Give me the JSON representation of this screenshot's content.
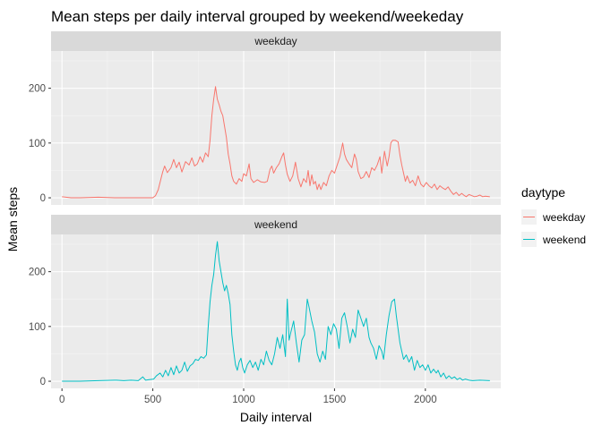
{
  "chart_data": {
    "type": "line",
    "title": "Mean steps per daily interval grouped by weekend/weekeday",
    "xlabel": "Daily interval",
    "ylabel": "Mean steps",
    "xlim": [
      -60,
      2415
    ],
    "ylim": [
      -13,
      268
    ],
    "x_ticks": [
      0,
      500,
      1000,
      1500,
      2000
    ],
    "y_ticks": [
      0,
      100,
      200
    ],
    "grid": true,
    "legend": {
      "title": "daytype",
      "position": "right",
      "entries": [
        "weekday",
        "weekend"
      ]
    },
    "facets": [
      {
        "label": "weekday",
        "series": "weekday"
      },
      {
        "label": "weekend",
        "series": "weekend"
      }
    ],
    "series": [
      {
        "name": "weekday",
        "color": "#F8766D",
        "points": [
          [
            0,
            2
          ],
          [
            50,
            0
          ],
          [
            100,
            0
          ],
          [
            200,
            1
          ],
          [
            300,
            0
          ],
          [
            400,
            0
          ],
          [
            500,
            0
          ],
          [
            515,
            4
          ],
          [
            530,
            15
          ],
          [
            545,
            35
          ],
          [
            555,
            48
          ],
          [
            565,
            58
          ],
          [
            580,
            46
          ],
          [
            600,
            55
          ],
          [
            615,
            70
          ],
          [
            630,
            55
          ],
          [
            645,
            65
          ],
          [
            660,
            47
          ],
          [
            680,
            66
          ],
          [
            700,
            60
          ],
          [
            715,
            73
          ],
          [
            730,
            58
          ],
          [
            745,
            62
          ],
          [
            760,
            75
          ],
          [
            775,
            65
          ],
          [
            790,
            82
          ],
          [
            805,
            75
          ],
          [
            815,
            105
          ],
          [
            825,
            150
          ],
          [
            835,
            180
          ],
          [
            845,
            203
          ],
          [
            855,
            180
          ],
          [
            865,
            170
          ],
          [
            875,
            158
          ],
          [
            885,
            150
          ],
          [
            895,
            130
          ],
          [
            905,
            110
          ],
          [
            915,
            80
          ],
          [
            925,
            62
          ],
          [
            935,
            40
          ],
          [
            945,
            30
          ],
          [
            960,
            25
          ],
          [
            975,
            35
          ],
          [
            990,
            30
          ],
          [
            1000,
            44
          ],
          [
            1015,
            40
          ],
          [
            1030,
            62
          ],
          [
            1040,
            35
          ],
          [
            1055,
            28
          ],
          [
            1075,
            33
          ],
          [
            1095,
            29
          ],
          [
            1115,
            28
          ],
          [
            1130,
            30
          ],
          [
            1145,
            52
          ],
          [
            1155,
            58
          ],
          [
            1165,
            45
          ],
          [
            1180,
            55
          ],
          [
            1195,
            62
          ],
          [
            1210,
            75
          ],
          [
            1220,
            82
          ],
          [
            1230,
            60
          ],
          [
            1240,
            43
          ],
          [
            1255,
            30
          ],
          [
            1270,
            40
          ],
          [
            1285,
            65
          ],
          [
            1300,
            35
          ],
          [
            1315,
            20
          ],
          [
            1330,
            35
          ],
          [
            1345,
            28
          ],
          [
            1355,
            50
          ],
          [
            1365,
            22
          ],
          [
            1375,
            42
          ],
          [
            1385,
            25
          ],
          [
            1395,
            30
          ],
          [
            1405,
            15
          ],
          [
            1415,
            25
          ],
          [
            1425,
            15
          ],
          [
            1440,
            28
          ],
          [
            1455,
            22
          ],
          [
            1470,
            40
          ],
          [
            1485,
            50
          ],
          [
            1500,
            45
          ],
          [
            1515,
            60
          ],
          [
            1530,
            75
          ],
          [
            1545,
            100
          ],
          [
            1555,
            80
          ],
          [
            1565,
            70
          ],
          [
            1580,
            62
          ],
          [
            1595,
            55
          ],
          [
            1610,
            80
          ],
          [
            1620,
            70
          ],
          [
            1630,
            48
          ],
          [
            1645,
            35
          ],
          [
            1660,
            38
          ],
          [
            1675,
            48
          ],
          [
            1690,
            37
          ],
          [
            1705,
            55
          ],
          [
            1720,
            50
          ],
          [
            1735,
            60
          ],
          [
            1750,
            75
          ],
          [
            1760,
            45
          ],
          [
            1775,
            85
          ],
          [
            1790,
            58
          ],
          [
            1800,
            75
          ],
          [
            1810,
            100
          ],
          [
            1820,
            105
          ],
          [
            1835,
            105
          ],
          [
            1850,
            102
          ],
          [
            1860,
            78
          ],
          [
            1870,
            60
          ],
          [
            1880,
            45
          ],
          [
            1890,
            30
          ],
          [
            1900,
            40
          ],
          [
            1915,
            27
          ],
          [
            1930,
            32
          ],
          [
            1945,
            22
          ],
          [
            1960,
            40
          ],
          [
            1975,
            25
          ],
          [
            1990,
            20
          ],
          [
            2005,
            28
          ],
          [
            2020,
            22
          ],
          [
            2035,
            18
          ],
          [
            2050,
            25
          ],
          [
            2065,
            15
          ],
          [
            2080,
            22
          ],
          [
            2095,
            18
          ],
          [
            2110,
            15
          ],
          [
            2125,
            20
          ],
          [
            2140,
            12
          ],
          [
            2155,
            6
          ],
          [
            2170,
            10
          ],
          [
            2185,
            4
          ],
          [
            2200,
            8
          ],
          [
            2215,
            4
          ],
          [
            2225,
            2
          ],
          [
            2240,
            6
          ],
          [
            2255,
            4
          ],
          [
            2270,
            2
          ],
          [
            2285,
            3
          ],
          [
            2300,
            5
          ],
          [
            2315,
            2
          ],
          [
            2330,
            3
          ],
          [
            2355,
            2
          ]
        ]
      },
      {
        "name": "weekend",
        "color": "#00BFC4",
        "points": [
          [
            0,
            0
          ],
          [
            100,
            0
          ],
          [
            200,
            1
          ],
          [
            300,
            2
          ],
          [
            340,
            1
          ],
          [
            380,
            2
          ],
          [
            420,
            1
          ],
          [
            445,
            8
          ],
          [
            460,
            2
          ],
          [
            480,
            3
          ],
          [
            505,
            4
          ],
          [
            520,
            10
          ],
          [
            540,
            15
          ],
          [
            555,
            8
          ],
          [
            570,
            20
          ],
          [
            585,
            10
          ],
          [
            600,
            25
          ],
          [
            615,
            12
          ],
          [
            630,
            28
          ],
          [
            645,
            15
          ],
          [
            660,
            20
          ],
          [
            675,
            35
          ],
          [
            690,
            18
          ],
          [
            705,
            28
          ],
          [
            720,
            32
          ],
          [
            735,
            40
          ],
          [
            750,
            38
          ],
          [
            765,
            45
          ],
          [
            780,
            42
          ],
          [
            795,
            48
          ],
          [
            805,
            100
          ],
          [
            815,
            145
          ],
          [
            825,
            175
          ],
          [
            835,
            195
          ],
          [
            845,
            230
          ],
          [
            855,
            255
          ],
          [
            865,
            220
          ],
          [
            875,
            200
          ],
          [
            885,
            180
          ],
          [
            895,
            165
          ],
          [
            905,
            175
          ],
          [
            915,
            160
          ],
          [
            925,
            140
          ],
          [
            935,
            85
          ],
          [
            945,
            55
          ],
          [
            955,
            30
          ],
          [
            965,
            20
          ],
          [
            975,
            35
          ],
          [
            985,
            42
          ],
          [
            995,
            25
          ],
          [
            1005,
            15
          ],
          [
            1020,
            30
          ],
          [
            1035,
            38
          ],
          [
            1050,
            25
          ],
          [
            1065,
            35
          ],
          [
            1080,
            20
          ],
          [
            1095,
            40
          ],
          [
            1110,
            30
          ],
          [
            1125,
            55
          ],
          [
            1140,
            38
          ],
          [
            1155,
            30
          ],
          [
            1170,
            50
          ],
          [
            1185,
            80
          ],
          [
            1200,
            60
          ],
          [
            1215,
            85
          ],
          [
            1230,
            45
          ],
          [
            1240,
            150
          ],
          [
            1250,
            75
          ],
          [
            1260,
            90
          ],
          [
            1275,
            110
          ],
          [
            1290,
            70
          ],
          [
            1305,
            35
          ],
          [
            1320,
            75
          ],
          [
            1335,
            85
          ],
          [
            1350,
            150
          ],
          [
            1360,
            135
          ],
          [
            1375,
            110
          ],
          [
            1390,
            90
          ],
          [
            1405,
            50
          ],
          [
            1420,
            35
          ],
          [
            1435,
            55
          ],
          [
            1450,
            40
          ],
          [
            1465,
            100
          ],
          [
            1480,
            85
          ],
          [
            1495,
            105
          ],
          [
            1510,
            95
          ],
          [
            1525,
            60
          ],
          [
            1540,
            115
          ],
          [
            1555,
            125
          ],
          [
            1570,
            100
          ],
          [
            1585,
            70
          ],
          [
            1600,
            95
          ],
          [
            1615,
            80
          ],
          [
            1630,
            130
          ],
          [
            1645,
            115
          ],
          [
            1660,
            100
          ],
          [
            1675,
            115
          ],
          [
            1690,
            80
          ],
          [
            1700,
            70
          ],
          [
            1715,
            60
          ],
          [
            1730,
            40
          ],
          [
            1745,
            65
          ],
          [
            1760,
            55
          ],
          [
            1770,
            40
          ],
          [
            1785,
            85
          ],
          [
            1800,
            120
          ],
          [
            1815,
            145
          ],
          [
            1830,
            150
          ],
          [
            1840,
            120
          ],
          [
            1850,
            95
          ],
          [
            1860,
            70
          ],
          [
            1870,
            55
          ],
          [
            1880,
            40
          ],
          [
            1895,
            48
          ],
          [
            1910,
            35
          ],
          [
            1925,
            45
          ],
          [
            1940,
            20
          ],
          [
            1955,
            38
          ],
          [
            1970,
            25
          ],
          [
            1985,
            30
          ],
          [
            2000,
            20
          ],
          [
            2015,
            30
          ],
          [
            2030,
            15
          ],
          [
            2045,
            22
          ],
          [
            2060,
            15
          ],
          [
            2070,
            20
          ],
          [
            2085,
            8
          ],
          [
            2100,
            15
          ],
          [
            2115,
            5
          ],
          [
            2130,
            10
          ],
          [
            2145,
            5
          ],
          [
            2160,
            8
          ],
          [
            2175,
            3
          ],
          [
            2190,
            6
          ],
          [
            2205,
            2
          ],
          [
            2220,
            4
          ],
          [
            2240,
            2
          ],
          [
            2260,
            1
          ],
          [
            2300,
            2
          ],
          [
            2355,
            1
          ]
        ]
      }
    ]
  }
}
